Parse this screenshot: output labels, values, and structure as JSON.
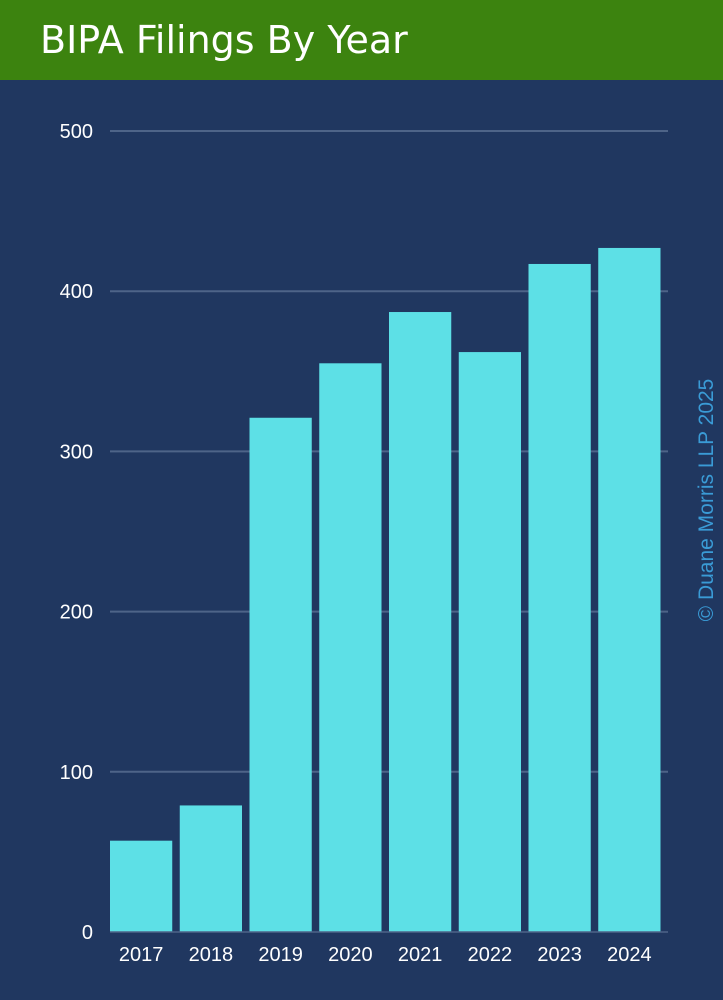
{
  "header": {
    "title": "BIPA Filings By Year"
  },
  "copyright": "© Duane Morris LLP 2025",
  "colors": {
    "background": "#203760",
    "header": "#3c830f",
    "bar": "#5de0e6",
    "grid": "#4e6488",
    "text": "#ffffff",
    "copyright": "#3a9bd6"
  },
  "chart_data": {
    "type": "bar",
    "title": "BIPA Filings By Year",
    "xlabel": "",
    "ylabel": "",
    "categories": [
      "2017",
      "2018",
      "2019",
      "2020",
      "2021",
      "2022",
      "2023",
      "2024"
    ],
    "values": [
      57,
      79,
      321,
      355,
      387,
      362,
      417,
      427
    ],
    "ylim": [
      0,
      500
    ],
    "yticks": [
      0,
      100,
      200,
      300,
      400,
      500
    ],
    "grid": true
  }
}
